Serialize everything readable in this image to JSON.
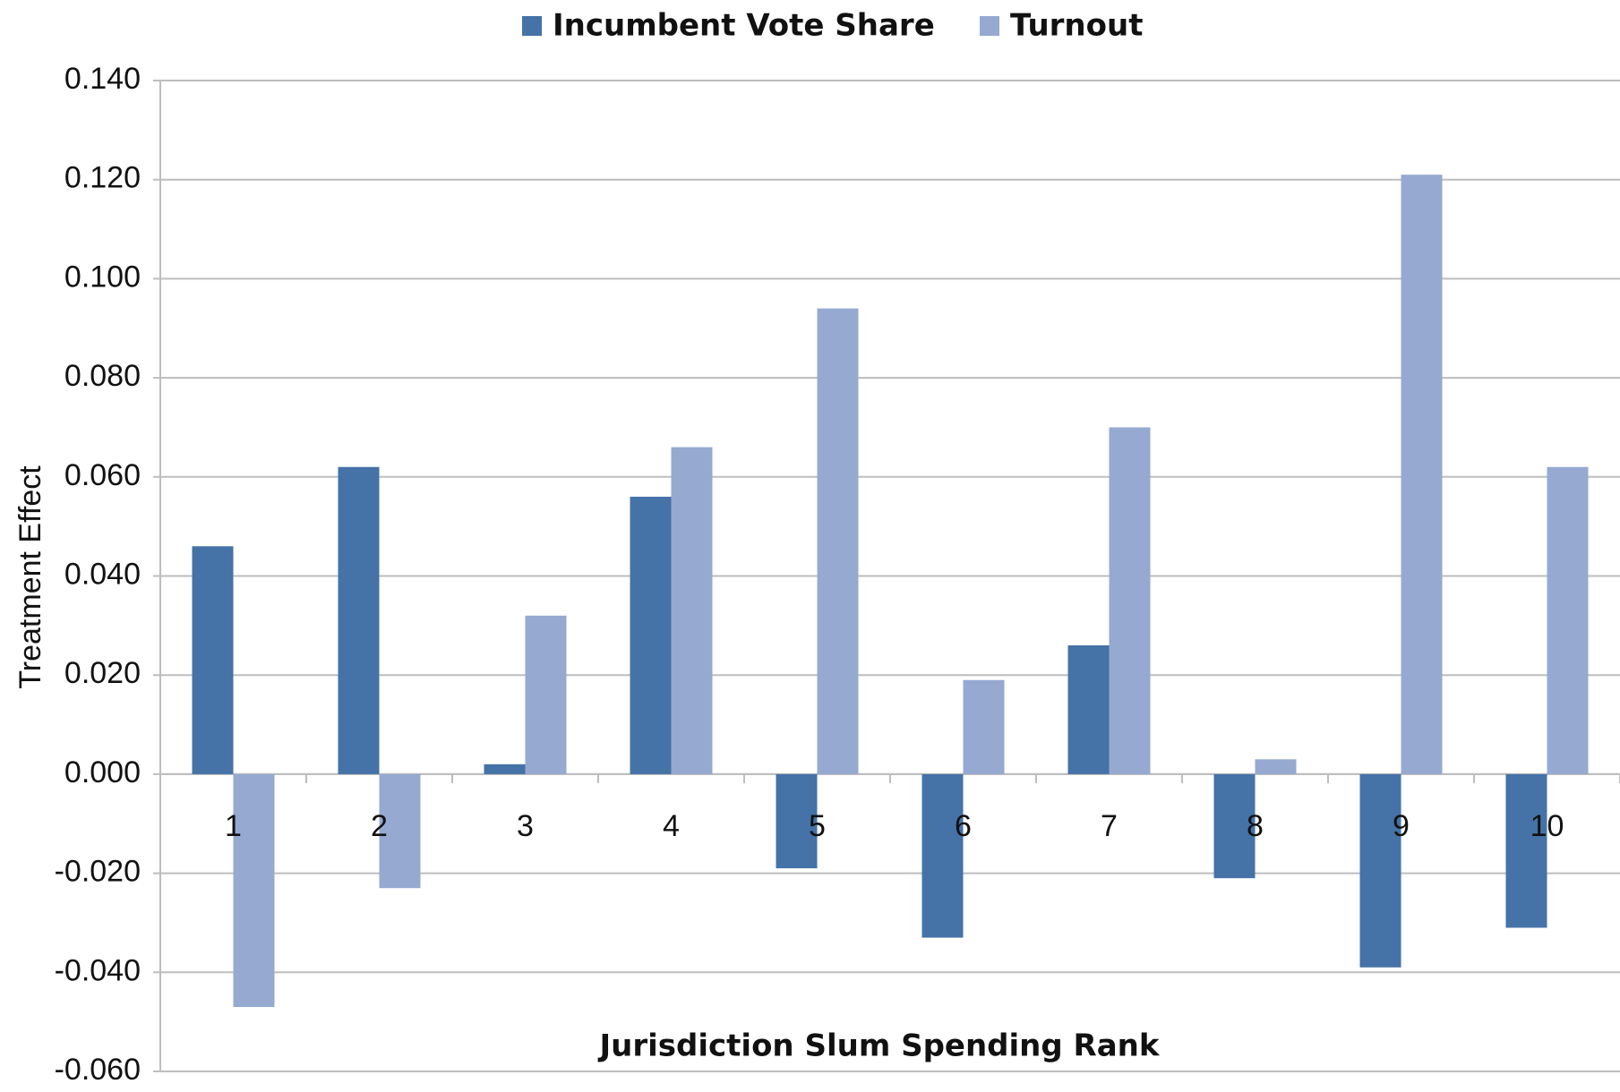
{
  "chart_data": {
    "type": "bar",
    "x_label": "Jurisdiction Slum Spending Rank",
    "y_label": "Treatment Effect",
    "categories": [
      "1",
      "2",
      "3",
      "4",
      "5",
      "6",
      "7",
      "8",
      "9",
      "10"
    ],
    "series": [
      {
        "name": "Incumbent Vote Share",
        "color": "#4572a7",
        "values": [
          0.046,
          0.062,
          0.002,
          0.056,
          -0.019,
          -0.033,
          0.026,
          -0.021,
          -0.039,
          -0.031
        ]
      },
      {
        "name": "Turnout",
        "color": "#95a9d1",
        "values": [
          -0.047,
          -0.023,
          0.032,
          0.066,
          0.094,
          0.019,
          0.07,
          0.003,
          0.121,
          0.062
        ]
      }
    ],
    "ylim": [
      -0.06,
      0.14
    ],
    "yticks": [
      {
        "value": -0.06,
        "label": "-0.060"
      },
      {
        "value": -0.04,
        "label": "-0.040"
      },
      {
        "value": -0.02,
        "label": "-0.020"
      },
      {
        "value": 0,
        "label": "0.000"
      },
      {
        "value": 0.02,
        "label": "0.020"
      },
      {
        "value": 0.04,
        "label": "0.040"
      },
      {
        "value": 0.06,
        "label": "0.060"
      },
      {
        "value": 0.08,
        "label": "0.080"
      },
      {
        "value": 0.1,
        "label": "0.100"
      },
      {
        "value": 0.12,
        "label": "0.120"
      },
      {
        "value": 0.14,
        "label": "0.140"
      }
    ],
    "grid": true,
    "legend": "top"
  }
}
